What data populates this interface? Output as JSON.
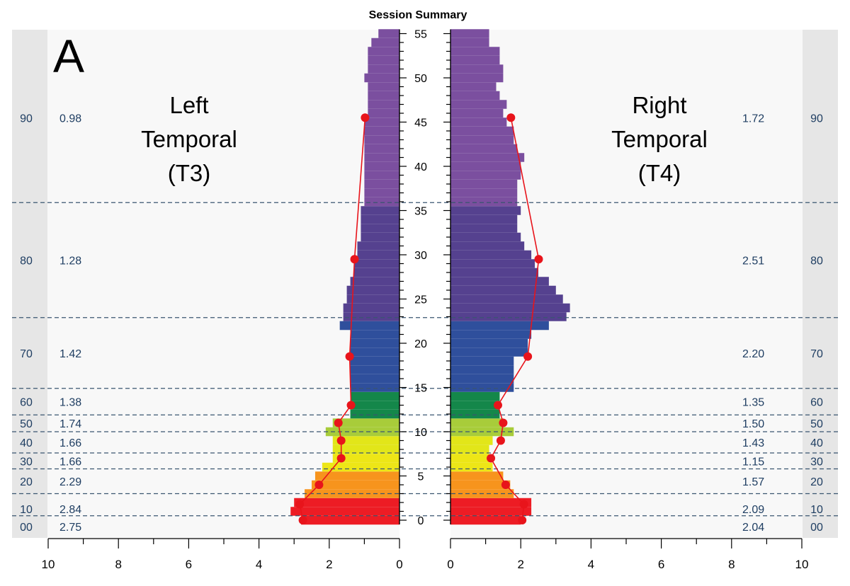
{
  "chart_data": {
    "type": "bar",
    "title": "Session Summary",
    "panel_label": "A",
    "y_axis": {
      "range": [
        0,
        55
      ],
      "ticks": [
        "0",
        "5",
        "10",
        "15",
        "20",
        "25",
        "30",
        "35",
        "40",
        "45",
        "50",
        "55"
      ]
    },
    "x_axis": {
      "range": [
        0,
        10
      ],
      "left_ticks": [
        "10",
        "8",
        "6",
        "4",
        "2",
        "0"
      ],
      "right_ticks": [
        "0",
        "2",
        "4",
        "6",
        "8",
        "10"
      ]
    },
    "left_series": {
      "name_lines": [
        "Left",
        "Temporal",
        "(T3)"
      ]
    },
    "right_series": {
      "name_lines": [
        "Right",
        "Temporal",
        "(T4)"
      ]
    },
    "bands": [
      {
        "percentile": "00",
        "y_from": 0,
        "y_to": 0.5,
        "left_avg": "2.75",
        "right_avg": "2.04",
        "color": "#ed1c24"
      },
      {
        "percentile": "10",
        "y_from": 0.5,
        "y_to": 3,
        "left_avg": "2.84",
        "right_avg": "2.09",
        "color": "#ed1c24"
      },
      {
        "percentile": "20",
        "y_from": 3,
        "y_to": 5.8,
        "left_avg": "2.29",
        "right_avg": "1.57",
        "color": "#f7941d"
      },
      {
        "percentile": "30",
        "y_from": 5.8,
        "y_to": 7.6,
        "left_avg": "1.66",
        "right_avg": "1.15",
        "color": "#ede617"
      },
      {
        "percentile": "40",
        "y_from": 7.6,
        "y_to": 10,
        "left_avg": "1.66",
        "right_avg": "1.43",
        "color": "#e2e619"
      },
      {
        "percentile": "50",
        "y_from": 10,
        "y_to": 11.9,
        "left_avg": "1.74",
        "right_avg": "1.50",
        "color": "#a8cc3a"
      },
      {
        "percentile": "60",
        "y_from": 11.9,
        "y_to": 14.9,
        "left_avg": "1.38",
        "right_avg": "1.35",
        "color": "#14874a"
      },
      {
        "percentile": "70",
        "y_from": 14.9,
        "y_to": 22.9,
        "left_avg": "1.42",
        "right_avg": "2.20",
        "color": "#2f4f9c"
      },
      {
        "percentile": "80",
        "y_from": 22.9,
        "y_to": 35.9,
        "left_avg": "1.28",
        "right_avg": "2.51",
        "color": "#55418f"
      },
      {
        "percentile": "90",
        "y_from": 35.9,
        "y_to": 56,
        "left_avg": "0.98",
        "right_avg": "1.72",
        "color": "#7b4f9f"
      }
    ],
    "left_bars": [
      [
        0,
        2.8
      ],
      [
        1,
        3.1
      ],
      [
        2,
        3.0
      ],
      [
        3,
        2.7
      ],
      [
        4,
        2.5
      ],
      [
        5,
        2.4
      ],
      [
        6,
        2.2
      ],
      [
        7,
        1.9
      ],
      [
        8,
        1.9
      ],
      [
        9,
        1.9
      ],
      [
        10,
        2.1
      ],
      [
        11,
        1.9
      ],
      [
        12,
        1.4
      ],
      [
        13,
        1.4
      ],
      [
        14,
        1.4
      ],
      [
        15,
        1.4
      ],
      [
        16,
        1.4
      ],
      [
        17,
        1.4
      ],
      [
        18,
        1.4
      ],
      [
        19,
        1.4
      ],
      [
        20,
        1.4
      ],
      [
        21,
        1.4
      ],
      [
        22,
        1.7
      ],
      [
        23,
        1.6
      ],
      [
        24,
        1.6
      ],
      [
        25,
        1.5
      ],
      [
        26,
        1.5
      ],
      [
        27,
        1.4
      ],
      [
        28,
        1.3
      ],
      [
        29,
        1.3
      ],
      [
        30,
        1.2
      ],
      [
        31,
        1.2
      ],
      [
        32,
        1.1
      ],
      [
        33,
        1.1
      ],
      [
        34,
        1.1
      ],
      [
        35,
        1.1
      ],
      [
        36,
        1.0
      ],
      [
        37,
        1.0
      ],
      [
        38,
        1.0
      ],
      [
        39,
        1.0
      ],
      [
        40,
        1.0
      ],
      [
        41,
        1.0
      ],
      [
        42,
        1.0
      ],
      [
        43,
        1.0
      ],
      [
        44,
        1.0
      ],
      [
        45,
        1.0
      ],
      [
        46,
        0.9
      ],
      [
        47,
        0.9
      ],
      [
        48,
        0.9
      ],
      [
        49,
        0.9
      ],
      [
        50,
        1.0
      ],
      [
        51,
        0.9
      ],
      [
        52,
        0.9
      ],
      [
        53,
        0.9
      ],
      [
        54,
        0.8
      ],
      [
        55,
        0.6
      ]
    ],
    "right_bars": [
      [
        0,
        2.0
      ],
      [
        1,
        2.3
      ],
      [
        2,
        2.3
      ],
      [
        3,
        1.8
      ],
      [
        4,
        1.7
      ],
      [
        5,
        1.5
      ],
      [
        6,
        1.2
      ],
      [
        7,
        1.1
      ],
      [
        8,
        1.1
      ],
      [
        9,
        1.2
      ],
      [
        10,
        1.8
      ],
      [
        11,
        1.5
      ],
      [
        12,
        1.4
      ],
      [
        13,
        1.4
      ],
      [
        14,
        1.4
      ],
      [
        15,
        1.8
      ],
      [
        16,
        1.8
      ],
      [
        17,
        1.8
      ],
      [
        18,
        1.8
      ],
      [
        19,
        2.2
      ],
      [
        20,
        2.2
      ],
      [
        21,
        2.3
      ],
      [
        22,
        2.8
      ],
      [
        23,
        3.3
      ],
      [
        24,
        3.4
      ],
      [
        25,
        3.2
      ],
      [
        26,
        3.0
      ],
      [
        27,
        2.8
      ],
      [
        28,
        2.5
      ],
      [
        29,
        2.4
      ],
      [
        30,
        2.3
      ],
      [
        31,
        2.1
      ],
      [
        32,
        2.0
      ],
      [
        33,
        1.9
      ],
      [
        34,
        1.9
      ],
      [
        35,
        2.0
      ],
      [
        36,
        1.9
      ],
      [
        37,
        1.9
      ],
      [
        38,
        1.9
      ],
      [
        39,
        2.0
      ],
      [
        40,
        2.0
      ],
      [
        41,
        2.1
      ],
      [
        42,
        1.9
      ],
      [
        43,
        1.8
      ],
      [
        44,
        1.8
      ],
      [
        45,
        1.6
      ],
      [
        46,
        1.5
      ],
      [
        47,
        1.6
      ],
      [
        48,
        1.4
      ],
      [
        49,
        1.3
      ],
      [
        50,
        1.5
      ],
      [
        51,
        1.5
      ],
      [
        52,
        1.4
      ],
      [
        53,
        1.4
      ],
      [
        54,
        1.1
      ],
      [
        55,
        1.1
      ]
    ],
    "left_avg_line": [
      [
        0,
        2.75
      ],
      [
        1.8,
        2.84
      ],
      [
        4,
        2.29
      ],
      [
        7,
        1.66
      ],
      [
        9,
        1.66
      ],
      [
        11,
        1.74
      ],
      [
        13,
        1.38
      ],
      [
        18.5,
        1.42
      ],
      [
        29.5,
        1.28
      ],
      [
        45.5,
        0.98
      ]
    ],
    "right_avg_line": [
      [
        0,
        2.04
      ],
      [
        1.8,
        2.09
      ],
      [
        4,
        1.57
      ],
      [
        7,
        1.15
      ],
      [
        9,
        1.43
      ],
      [
        11,
        1.5
      ],
      [
        13,
        1.35
      ],
      [
        18.5,
        2.2
      ],
      [
        29.5,
        2.51
      ],
      [
        45.5,
        1.72
      ]
    ],
    "avg_line_color": "#e8141b"
  }
}
